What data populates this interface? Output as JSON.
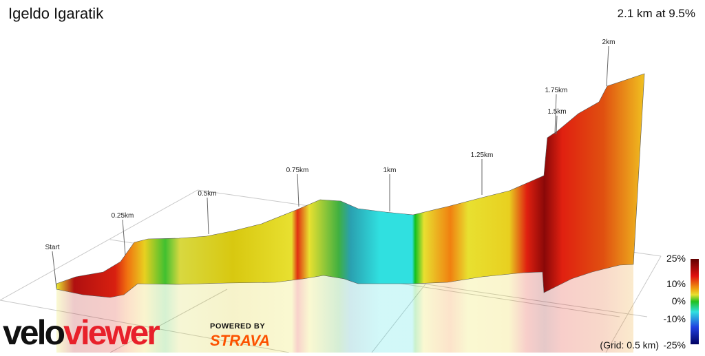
{
  "header": {
    "title": "Igeldo Igaratik",
    "summary": "2.1 km at 9.5%"
  },
  "markers": [
    "Start",
    "0.25km",
    "0.5km",
    "0.75km",
    "1km",
    "1.25km",
    "1.5km",
    "1.75km",
    "2km"
  ],
  "legend": {
    "labels": [
      "25%",
      "10%",
      "0%",
      "-10%",
      "-25%"
    ]
  },
  "grid_note": "(Grid: 0.5 km)",
  "branding": {
    "logo_part1": "velo",
    "logo_part2": "viewer",
    "powered_by": "POWERED BY",
    "partner": "STRAVA"
  }
}
